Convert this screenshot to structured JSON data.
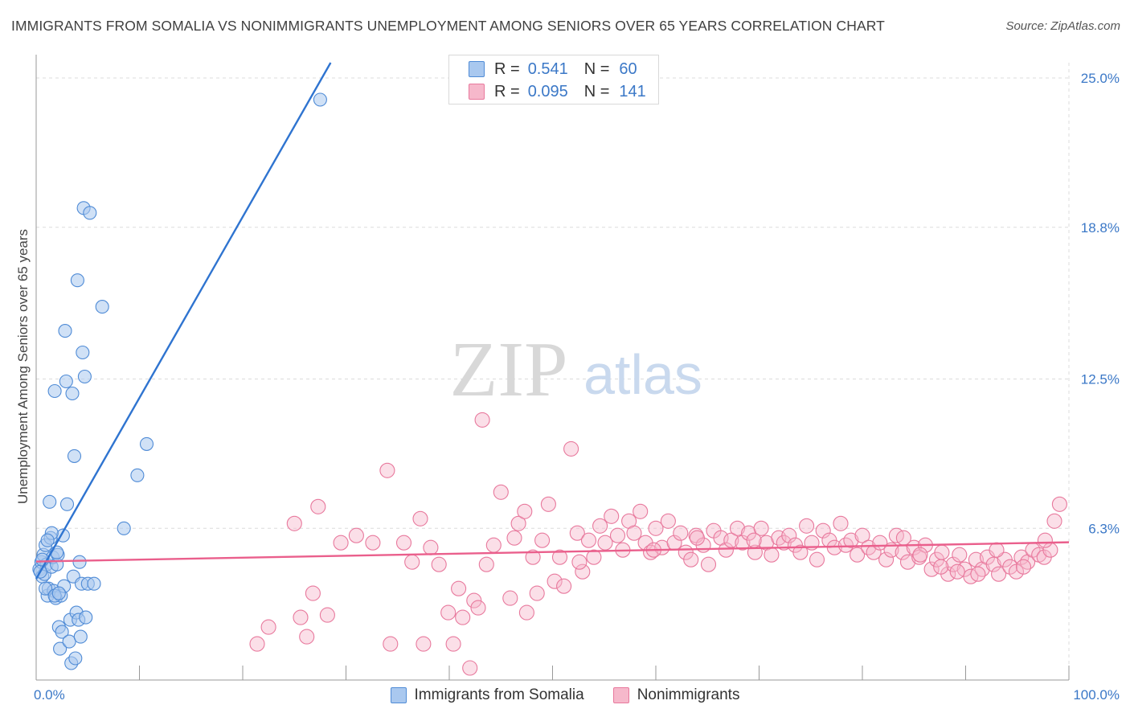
{
  "header": {
    "title": "IMMIGRANTS FROM SOMALIA VS NONIMMIGRANTS UNEMPLOYMENT AMONG SENIORS OVER 65 YEARS CORRELATION CHART",
    "source": "Source: ZipAtlas.com"
  },
  "legend_top": {
    "r_label": "R =",
    "n_label": "N =",
    "rows": [
      {
        "r": "0.541",
        "n": "60"
      },
      {
        "r": "0.095",
        "n": "141"
      }
    ]
  },
  "legend_bottom": {
    "items": [
      "Immigrants from Somalia",
      "Nonimmigrants"
    ]
  },
  "colors": {
    "blue_fill": "#a9c8ef",
    "blue_stroke": "#4f8bd6",
    "blue_line": "#2f74d0",
    "pink_fill": "#f6b8cb",
    "pink_stroke": "#e8799d",
    "pink_line": "#ea5f8c",
    "axis_text": "#3b78c7",
    "grid": "#dcdcdc"
  },
  "watermark": {
    "zip": "ZIP",
    "atlas": "atlas"
  },
  "chart_data": {
    "type": "scatter",
    "title": "IMMIGRANTS FROM SOMALIA VS NONIMMIGRANTS UNEMPLOYMENT AMONG SENIORS OVER 65 YEARS CORRELATION CHART",
    "xlabel": "",
    "ylabel": "Unemployment Among Seniors over 65 years",
    "xlim": [
      0,
      100
    ],
    "ylim": [
      0,
      25.0
    ],
    "x_tick_labels": [
      "0.0%",
      "100.0%"
    ],
    "y_ticks": [
      6.3,
      12.5,
      18.8,
      25.0
    ],
    "y_tick_labels": [
      "6.3%",
      "12.5%",
      "18.8%",
      "25.0%"
    ],
    "grid": true,
    "legend_position": "top-center",
    "series": [
      {
        "name": "Immigrants from Somalia",
        "r": 0.541,
        "n": 60,
        "trend": {
          "x": [
            0.0,
            29.0
          ],
          "y": [
            4.2,
            26.0
          ]
        },
        "points": [
          [
            0.3,
            4.6
          ],
          [
            0.5,
            4.9
          ],
          [
            0.6,
            4.3
          ],
          [
            0.7,
            5.2
          ],
          [
            0.8,
            4.4
          ],
          [
            0.9,
            5.6
          ],
          [
            1.0,
            4.8
          ],
          [
            1.1,
            3.5
          ],
          [
            1.2,
            3.8
          ],
          [
            1.3,
            7.4
          ],
          [
            1.4,
            5.9
          ],
          [
            1.5,
            4.7
          ],
          [
            1.6,
            5.1
          ],
          [
            1.7,
            3.7
          ],
          [
            1.8,
            12.0
          ],
          [
            1.9,
            3.4
          ],
          [
            2.0,
            4.8
          ],
          [
            2.1,
            5.2
          ],
          [
            2.2,
            2.2
          ],
          [
            2.3,
            1.3
          ],
          [
            2.4,
            3.5
          ],
          [
            2.5,
            2.0
          ],
          [
            2.6,
            6.0
          ],
          [
            2.7,
            3.9
          ],
          [
            2.8,
            14.5
          ],
          [
            2.9,
            12.4
          ],
          [
            3.0,
            7.3
          ],
          [
            3.2,
            1.6
          ],
          [
            3.3,
            2.5
          ],
          [
            3.4,
            0.7
          ],
          [
            3.5,
            11.9
          ],
          [
            3.6,
            4.3
          ],
          [
            3.7,
            9.3
          ],
          [
            3.8,
            0.9
          ],
          [
            3.9,
            2.8
          ],
          [
            4.0,
            16.6
          ],
          [
            4.1,
            2.5
          ],
          [
            4.2,
            4.9
          ],
          [
            4.3,
            1.8
          ],
          [
            4.4,
            4.0
          ],
          [
            4.5,
            13.6
          ],
          [
            4.6,
            19.6
          ],
          [
            4.7,
            12.6
          ],
          [
            4.8,
            2.6
          ],
          [
            5.0,
            4.0
          ],
          [
            5.2,
            19.4
          ],
          [
            5.6,
            4.0
          ],
          [
            6.4,
            15.5
          ],
          [
            8.5,
            6.3
          ],
          [
            9.8,
            8.5
          ],
          [
            10.7,
            9.8
          ],
          [
            27.5,
            24.1
          ],
          [
            0.4,
            4.5
          ],
          [
            0.9,
            3.8
          ],
          [
            1.8,
            3.5
          ],
          [
            2.2,
            3.6
          ],
          [
            0.6,
            5.0
          ],
          [
            1.5,
            6.1
          ],
          [
            2.0,
            5.3
          ],
          [
            1.1,
            5.8
          ]
        ]
      },
      {
        "name": "Nonimmigrants",
        "r": 0.095,
        "n": 141,
        "trend": {
          "x": [
            0.0,
            100.0
          ],
          "y": [
            4.92,
            5.72
          ]
        },
        "points": [
          [
            21.4,
            1.5
          ],
          [
            22.5,
            2.2
          ],
          [
            25.0,
            6.5
          ],
          [
            25.6,
            2.6
          ],
          [
            26.2,
            1.8
          ],
          [
            26.8,
            3.6
          ],
          [
            27.3,
            7.2
          ],
          [
            28.2,
            2.7
          ],
          [
            29.5,
            5.7
          ],
          [
            31.0,
            6.0
          ],
          [
            32.6,
            5.7
          ],
          [
            34.0,
            8.7
          ],
          [
            34.3,
            1.5
          ],
          [
            35.6,
            5.7
          ],
          [
            36.4,
            4.9
          ],
          [
            37.2,
            6.7
          ],
          [
            37.5,
            1.5
          ],
          [
            38.2,
            5.5
          ],
          [
            39.0,
            4.8
          ],
          [
            39.9,
            2.8
          ],
          [
            40.4,
            1.5
          ],
          [
            40.9,
            3.8
          ],
          [
            41.3,
            2.6
          ],
          [
            42.0,
            0.5
          ],
          [
            42.4,
            3.3
          ],
          [
            42.8,
            3.0
          ],
          [
            43.2,
            10.8
          ],
          [
            43.6,
            4.8
          ],
          [
            44.3,
            5.6
          ],
          [
            45.0,
            7.8
          ],
          [
            45.9,
            3.4
          ],
          [
            46.3,
            5.9
          ],
          [
            46.7,
            6.5
          ],
          [
            47.3,
            7.0
          ],
          [
            47.5,
            2.8
          ],
          [
            48.1,
            5.1
          ],
          [
            48.5,
            3.6
          ],
          [
            49.0,
            5.8
          ],
          [
            49.6,
            7.3
          ],
          [
            50.2,
            4.1
          ],
          [
            50.7,
            5.1
          ],
          [
            51.1,
            3.9
          ],
          [
            51.8,
            9.6
          ],
          [
            52.4,
            6.1
          ],
          [
            52.9,
            4.5
          ],
          [
            53.5,
            5.8
          ],
          [
            54.0,
            5.1
          ],
          [
            54.6,
            6.4
          ],
          [
            55.1,
            5.7
          ],
          [
            55.7,
            6.8
          ],
          [
            56.3,
            6.0
          ],
          [
            56.8,
            5.4
          ],
          [
            57.4,
            6.6
          ],
          [
            57.9,
            6.1
          ],
          [
            58.5,
            7.0
          ],
          [
            59.0,
            5.7
          ],
          [
            59.5,
            5.3
          ],
          [
            60.0,
            6.3
          ],
          [
            60.6,
            5.5
          ],
          [
            61.2,
            6.6
          ],
          [
            61.8,
            5.7
          ],
          [
            62.4,
            6.1
          ],
          [
            62.9,
            5.3
          ],
          [
            63.4,
            5.0
          ],
          [
            63.9,
            6.0
          ],
          [
            64.6,
            5.6
          ],
          [
            65.1,
            4.8
          ],
          [
            65.6,
            6.2
          ],
          [
            66.3,
            5.9
          ],
          [
            66.8,
            5.4
          ],
          [
            67.3,
            5.8
          ],
          [
            67.9,
            6.3
          ],
          [
            68.4,
            5.7
          ],
          [
            69.0,
            6.1
          ],
          [
            69.6,
            5.3
          ],
          [
            70.2,
            6.3
          ],
          [
            70.7,
            5.7
          ],
          [
            71.2,
            5.2
          ],
          [
            71.9,
            5.9
          ],
          [
            72.4,
            5.7
          ],
          [
            72.9,
            6.0
          ],
          [
            73.5,
            5.6
          ],
          [
            74.0,
            5.3
          ],
          [
            74.6,
            6.4
          ],
          [
            75.1,
            5.7
          ],
          [
            75.6,
            5.0
          ],
          [
            76.2,
            6.2
          ],
          [
            76.8,
            5.8
          ],
          [
            77.3,
            5.5
          ],
          [
            77.9,
            6.5
          ],
          [
            78.4,
            5.6
          ],
          [
            78.9,
            5.8
          ],
          [
            79.5,
            5.2
          ],
          [
            80.0,
            6.0
          ],
          [
            80.6,
            5.5
          ],
          [
            81.1,
            5.3
          ],
          [
            81.7,
            5.7
          ],
          [
            82.3,
            5.0
          ],
          [
            82.8,
            5.4
          ],
          [
            83.3,
            6.0
          ],
          [
            83.9,
            5.3
          ],
          [
            84.4,
            4.9
          ],
          [
            85.0,
            5.5
          ],
          [
            85.5,
            5.1
          ],
          [
            86.1,
            5.6
          ],
          [
            86.7,
            4.6
          ],
          [
            87.2,
            5.0
          ],
          [
            87.7,
            5.3
          ],
          [
            88.3,
            4.4
          ],
          [
            88.8,
            4.8
          ],
          [
            89.4,
            5.2
          ],
          [
            89.9,
            4.6
          ],
          [
            90.5,
            4.3
          ],
          [
            91.0,
            5.0
          ],
          [
            91.6,
            4.6
          ],
          [
            92.1,
            5.1
          ],
          [
            92.7,
            4.8
          ],
          [
            93.2,
            4.4
          ],
          [
            93.8,
            5.0
          ],
          [
            94.3,
            4.7
          ],
          [
            94.9,
            4.5
          ],
          [
            95.4,
            5.1
          ],
          [
            96.0,
            4.9
          ],
          [
            96.5,
            5.4
          ],
          [
            97.1,
            5.2
          ],
          [
            97.6,
            5.1
          ],
          [
            98.2,
            5.4
          ],
          [
            98.6,
            6.6
          ],
          [
            99.1,
            7.3
          ],
          [
            97.7,
            5.8
          ],
          [
            95.6,
            4.7
          ],
          [
            93.0,
            5.4
          ],
          [
            91.2,
            4.4
          ],
          [
            89.2,
            4.5
          ],
          [
            87.6,
            4.7
          ],
          [
            85.6,
            5.2
          ],
          [
            84.0,
            5.9
          ],
          [
            69.5,
            5.8
          ],
          [
            64.0,
            5.9
          ],
          [
            59.8,
            5.4
          ],
          [
            52.6,
            4.9
          ]
        ]
      }
    ]
  }
}
